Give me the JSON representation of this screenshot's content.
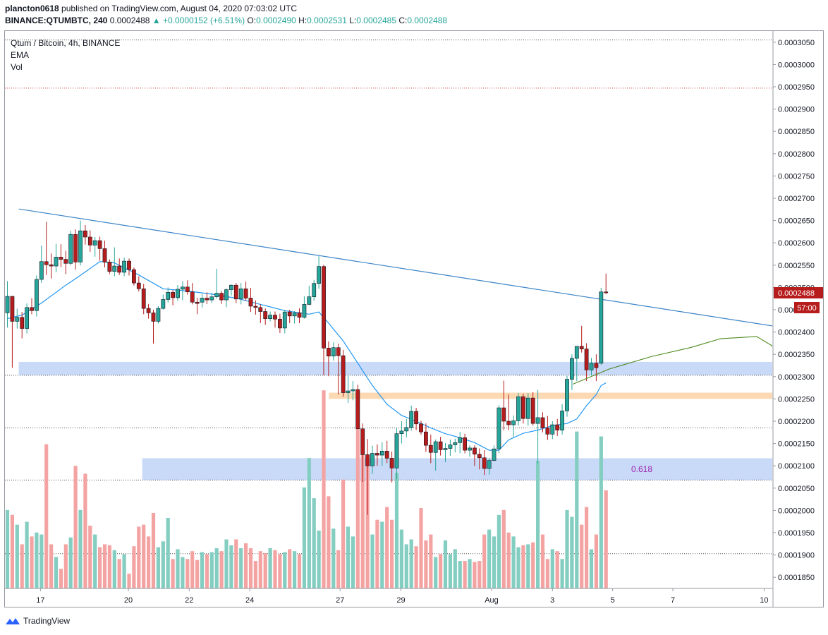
{
  "header": {
    "user": "plancton0618",
    "published_text": "published on TradingView.com, August 04, 2020 07:03:02 UTC",
    "symbol": "BINANCE:QTUMBTC, 240",
    "last": "0.0002488",
    "change": "▲ +0.0000152 (+6.51%)",
    "o_label": "O:",
    "o_value": "0.0002490",
    "h_label": "H:",
    "h_value": "0.0002531",
    "l_label": "L:",
    "l_value": "0.0002485",
    "c_label": "C:",
    "c_value": "0.0002488"
  },
  "legend": {
    "title": "Qtum / Bitcoin, 4h, BINANCE",
    "ema": "EMA",
    "vol": "Vol"
  },
  "brand": "TradingView",
  "colors": {
    "up": "#26a69a",
    "down": "#b71c1c",
    "candle_up_fill": "#26a69a",
    "vol_up": "#84cdc1",
    "vol_down": "#f4a3a3",
    "ema": "#2196f3",
    "trendline": "#3d85c6",
    "zone_blue": "#c9daf8",
    "zone_orange": "#fcd9b3",
    "projection": "#4f8a1f",
    "fib_text": "#9c27b0",
    "price_tag": "#b71c1c"
  },
  "chart_data": {
    "type": "candlestick",
    "y_range": [
      0.0001825,
      0.0003075
    ],
    "y_ticks": [
      "0.0003050",
      "0.0003000",
      "0.0002950",
      "0.0002900",
      "0.0002850",
      "0.0002800",
      "0.0002750",
      "0.0002700",
      "0.0002650",
      "0.0002600",
      "0.0002550",
      "0.0002500",
      "0.0002450",
      "0.0002400",
      "0.0002350",
      "0.0002300",
      "0.0002250",
      "0.0002200",
      "0.0002150",
      "0.0002100",
      "0.0002050",
      "0.0002000",
      "0.0001950",
      "0.0001900",
      "0.0001850"
    ],
    "x_labels": [
      "17",
      "20",
      "22",
      "24",
      "27",
      "29",
      "Aug",
      "3",
      "5",
      "7",
      "10"
    ],
    "last_price_label": "0.0002488",
    "countdown_label": "57:00",
    "fib_label": "0.618",
    "dotted_levels": [
      0.0003055,
      0.0002947,
      0.0002303,
      0.0002185,
      0.0002068,
      0.0001903
    ],
    "dotted_colors": [
      "#555555",
      "#d04040",
      "#555555",
      "#555555",
      "#555555",
      "#555555"
    ],
    "zones": [
      {
        "kind": "blue",
        "from_day": 0.0,
        "to_day": 25.2,
        "y_top": 0.0002333,
        "y_bottom": 0.0002303
      },
      {
        "kind": "orange",
        "from_day": 10.3,
        "to_day": 25.2,
        "y_top": 0.0002264,
        "y_bottom": 0.000225
      },
      {
        "kind": "blue",
        "from_day": 4.1,
        "to_day": 25.2,
        "y_top": 0.0002117,
        "y_bottom": 0.0002068
      }
    ],
    "trendline": {
      "x1_day": 0.0,
      "y1": 0.0002676,
      "x2_day": 25.2,
      "y2": 0.0002412
    },
    "projection": [
      [
        18.4,
        0.0002283
      ],
      [
        19.6,
        0.0002317
      ],
      [
        21.0,
        0.0002345
      ],
      [
        22.3,
        0.0002365
      ],
      [
        23.3,
        0.0002385
      ],
      [
        24.5,
        0.000239
      ],
      [
        25.0,
        0.000237
      ],
      [
        25.2,
        0.000235
      ]
    ],
    "candles": [
      [
        0.0002443,
        0.0002514,
        0.000241,
        0.000248,
        1905
      ],
      [
        0.000248,
        0.0002481,
        0.000232,
        0.0002424,
        1900
      ],
      [
        0.0002424,
        0.0002452,
        0.0002408,
        0.0002433,
        1890
      ],
      [
        0.0002433,
        0.0002445,
        0.0002386,
        0.0002408,
        1870
      ],
      [
        0.0002408,
        0.0002464,
        0.0002397,
        0.0002455,
        1893
      ],
      [
        0.0002455,
        0.0002476,
        0.000244,
        0.0002448,
        1878
      ],
      [
        0.0002448,
        0.0002527,
        0.0002435,
        0.0002518,
        1882
      ],
      [
        0.0002518,
        0.0002594,
        0.000251,
        0.0002558,
        1880
      ],
      [
        0.0002558,
        0.0002647,
        0.0002528,
        0.0002551,
        1972
      ],
      [
        0.0002551,
        0.0002576,
        0.000252,
        0.0002548,
        1870
      ],
      [
        0.0002548,
        0.0002598,
        0.0002534,
        0.0002568,
        1857
      ],
      [
        0.0002568,
        0.0002597,
        0.0002546,
        0.0002563,
        1845
      ],
      [
        0.0002563,
        0.0002582,
        0.000253,
        0.0002554,
        1870
      ],
      [
        0.0002554,
        0.0002627,
        0.000255,
        0.0002619,
        1877
      ],
      [
        0.0002619,
        0.000263,
        0.000254,
        0.0002557,
        1950
      ],
      [
        0.0002557,
        0.000265,
        0.0002549,
        0.0002627,
        1905
      ],
      [
        0.0002627,
        0.000264,
        0.0002596,
        0.0002613,
        1942
      ],
      [
        0.0002613,
        0.0002628,
        0.000258,
        0.0002595,
        1889
      ],
      [
        0.0002595,
        0.0002613,
        0.0002569,
        0.0002605,
        1880
      ],
      [
        0.0002605,
        0.0002614,
        0.000256,
        0.0002587,
        1867
      ],
      [
        0.0002587,
        0.0002605,
        0.0002545,
        0.0002557,
        1870
      ],
      [
        0.0002557,
        0.0002563,
        0.000253,
        0.0002536,
        1869
      ],
      [
        0.0002536,
        0.000259,
        0.0002525,
        0.0002548,
        1864
      ],
      [
        0.0002548,
        0.0002565,
        0.0002528,
        0.0002534,
        1855
      ],
      [
        0.0002534,
        0.0002567,
        0.0002525,
        0.0002559,
        1860
      ],
      [
        0.0002559,
        0.0002565,
        0.0002527,
        0.000254,
        1840
      ],
      [
        0.000254,
        0.0002545,
        0.0002504,
        0.000251,
        1868
      ],
      [
        0.000251,
        0.0002525,
        0.0002491,
        0.0002497,
        1888
      ],
      [
        0.0002497,
        0.0002508,
        0.000244,
        0.0002453,
        1890
      ],
      [
        0.0002453,
        0.0002463,
        0.000243,
        0.0002443,
        1878
      ],
      [
        0.0002443,
        0.000245,
        0.0002374,
        0.0002424,
        1902
      ],
      [
        0.0002424,
        0.0002458,
        0.0002419,
        0.0002453,
        1867
      ],
      [
        0.0002453,
        0.0002484,
        0.000245,
        0.0002473,
        1873
      ],
      [
        0.0002473,
        0.00025,
        0.0002466,
        0.0002489,
        1897
      ],
      [
        0.0002489,
        0.0002494,
        0.000246,
        0.0002477,
        1855
      ],
      [
        0.0002477,
        0.0002505,
        0.000247,
        0.0002496,
        1865
      ],
      [
        0.0002496,
        0.0002514,
        0.0002471,
        0.0002501,
        1857
      ],
      [
        0.0002501,
        0.0002516,
        0.0002484,
        0.000249,
        1855
      ],
      [
        0.000249,
        0.000251,
        0.0002462,
        0.0002467,
        1863
      ],
      [
        0.0002467,
        0.0002477,
        0.000244,
        0.0002464,
        1854
      ],
      [
        0.0002467,
        0.0002485,
        0.0002455,
        0.0002476,
        1862
      ],
      [
        0.0002476,
        0.0002489,
        0.0002463,
        0.0002472,
        1860
      ],
      [
        0.0002472,
        0.0002488,
        0.0002465,
        0.0002479,
        1862
      ],
      [
        0.0002479,
        0.0002542,
        0.0002475,
        0.0002487,
        1866
      ],
      [
        0.0002487,
        0.0002492,
        0.0002463,
        0.0002472,
        1863
      ],
      [
        0.0002472,
        0.0002498,
        0.0002456,
        0.0002495,
        1875
      ],
      [
        0.0002495,
        0.0002507,
        0.0002482,
        0.0002505,
        1869
      ],
      [
        0.0002505,
        0.000251,
        0.0002465,
        0.0002474,
        1875
      ],
      [
        0.0002474,
        0.000251,
        0.0002462,
        0.0002497,
        1866
      ],
      [
        0.0002497,
        0.0002513,
        0.000247,
        0.0002476,
        1871
      ],
      [
        0.0002476,
        0.0002499,
        0.0002445,
        0.0002458,
        1866
      ],
      [
        0.0002458,
        0.0002471,
        0.0002439,
        0.0002455,
        1853
      ],
      [
        0.0002455,
        0.0002462,
        0.000242,
        0.0002446,
        1863
      ],
      [
        0.0002446,
        0.0002453,
        0.0002416,
        0.000243,
        1861
      ],
      [
        0.000243,
        0.0002446,
        0.0002424,
        0.0002438,
        1866
      ],
      [
        0.0002438,
        0.0002446,
        0.000241,
        0.0002429,
        1864
      ],
      [
        0.0002429,
        0.0002441,
        0.0002398,
        0.0002409,
        1860
      ],
      [
        0.0002409,
        0.000245,
        0.0002397,
        0.0002445,
        1862
      ],
      [
        0.0002445,
        0.000245,
        0.000242,
        0.0002436,
        1865
      ],
      [
        0.0002436,
        0.0002447,
        0.0002419,
        0.0002443,
        1863
      ],
      [
        0.0002443,
        0.0002453,
        0.000242,
        0.0002433,
        1860
      ],
      [
        0.0002433,
        0.000248,
        0.000243,
        0.0002462,
        1928
      ],
      [
        0.0002462,
        0.0002504,
        0.000246,
        0.0002479,
        1958
      ],
      [
        0.0002479,
        0.0002517,
        0.000247,
        0.0002509,
        1917
      ],
      [
        0.0002509,
        0.000257,
        0.0002497,
        0.0002547,
        1884
      ],
      [
        0.0002547,
        0.0002551,
        0.0002303,
        0.0002364,
        2027
      ],
      [
        0.0002364,
        0.0002379,
        0.0002301,
        0.0002346,
        1919
      ],
      [
        0.0002346,
        0.0002377,
        0.0002336,
        0.0002365,
        1886
      ],
      [
        0.0002365,
        0.0002374,
        0.000226,
        0.0002347,
        1864
      ],
      [
        0.0002347,
        0.000236,
        0.0002255,
        0.0002264,
        1936
      ],
      [
        0.0002264,
        0.0002302,
        0.0002241,
        0.0002268,
        1888
      ],
      [
        0.0002268,
        0.000229,
        0.0002247,
        0.0002271,
        1878
      ],
      [
        0.0002271,
        0.0002282,
        0.0002185,
        0.0002183,
        1990
      ],
      [
        0.0002183,
        0.0002195,
        0.0002064,
        0.0002125,
        1962
      ],
      [
        0.0002125,
        0.000216,
        0.000199,
        0.00021,
        1955
      ],
      [
        0.00021,
        0.0002145,
        0.0002082,
        0.0002128,
        1880
      ],
      [
        0.0002128,
        0.0002148,
        0.00021,
        0.0002124,
        1895
      ],
      [
        0.0002124,
        0.0002153,
        0.00021,
        0.0002133,
        1893
      ],
      [
        0.0002133,
        0.0002156,
        0.0002106,
        0.0002117,
        1908
      ],
      [
        0.0002117,
        0.0002132,
        0.0002063,
        0.0002095,
        1895
      ],
      [
        0.0002095,
        0.0002185,
        0.000207,
        0.0002172,
        1943
      ],
      [
        0.0002172,
        0.00022,
        0.000215,
        0.0002178,
        1885
      ],
      [
        0.0002178,
        0.0002205,
        0.0002164,
        0.0002186,
        1870
      ],
      [
        0.0002186,
        0.0002235,
        0.0002179,
        0.0002222,
        1875
      ],
      [
        0.0002222,
        0.000223,
        0.000218,
        0.0002194,
        1868
      ],
      [
        0.0002194,
        0.0002201,
        0.000217,
        0.0002176,
        1907
      ],
      [
        0.0002176,
        0.0002195,
        0.0002131,
        0.0002146,
        1874
      ],
      [
        0.0002146,
        0.000217,
        0.0002106,
        0.000213,
        1880
      ],
      [
        0.000213,
        0.0002159,
        0.0002089,
        0.0002154,
        1857
      ],
      [
        0.0002154,
        0.0002165,
        0.0002123,
        0.0002136,
        1860
      ],
      [
        0.0002136,
        0.0002151,
        0.0002108,
        0.0002139,
        1874
      ],
      [
        0.0002139,
        0.0002159,
        0.0002122,
        0.0002147,
        1860
      ],
      [
        0.0002147,
        0.0002161,
        0.000213,
        0.0002152,
        1865
      ],
      [
        0.0002152,
        0.0002176,
        0.0002128,
        0.0002163,
        1853
      ],
      [
        0.0002163,
        0.0002172,
        0.0002128,
        0.0002135,
        1853
      ],
      [
        0.0002135,
        0.0002146,
        0.000212,
        0.000214,
        1855
      ],
      [
        0.000214,
        0.0002146,
        0.00021,
        0.0002126,
        1852
      ],
      [
        0.0002126,
        0.0002139,
        0.0002092,
        0.0002118,
        1853
      ],
      [
        0.0002118,
        0.0002135,
        0.0002079,
        0.0002094,
        1880
      ],
      [
        0.0002094,
        0.0002118,
        0.000208,
        0.0002112,
        1885
      ],
      [
        0.0002112,
        0.0002146,
        0.000211,
        0.0002138,
        1878
      ],
      [
        0.0002138,
        0.0002236,
        0.0002128,
        0.000223,
        1900
      ],
      [
        0.000223,
        0.0002291,
        0.000218,
        0.00022,
        1905
      ],
      [
        0.00022,
        0.000226,
        0.000218,
        0.0002192,
        1882
      ],
      [
        0.0002192,
        0.0002213,
        0.0002165,
        0.0002201,
        1878
      ],
      [
        0.0002201,
        0.0002263,
        0.000219,
        0.0002255,
        1867
      ],
      [
        0.0002255,
        0.0002262,
        0.0002195,
        0.0002206,
        1869
      ],
      [
        0.0002206,
        0.0002263,
        0.000219,
        0.0002252,
        1870
      ],
      [
        0.0002252,
        0.0002265,
        0.000219,
        0.0002195,
        1872
      ],
      [
        0.0002195,
        0.000227,
        0.0002106,
        0.0002208,
        1955
      ],
      [
        0.0002208,
        0.000222,
        0.0002175,
        0.0002185,
        1880
      ],
      [
        0.0002185,
        0.0002212,
        0.0002158,
        0.0002171,
        1855
      ],
      [
        0.0002171,
        0.00022,
        0.000216,
        0.0002192,
        1865
      ],
      [
        0.0002192,
        0.0002205,
        0.0002167,
        0.000218,
        1863
      ],
      [
        0.000218,
        0.0002238,
        0.000217,
        0.0002223,
        1855
      ],
      [
        0.0002223,
        0.0002302,
        0.000221,
        0.0002294,
        1905
      ],
      [
        0.0002294,
        0.000235,
        0.000227,
        0.0002341,
        1898
      ],
      [
        0.0002341,
        0.0002367,
        0.000229,
        0.0002368,
        1985
      ],
      [
        0.0002368,
        0.0002414,
        0.0002354,
        0.0002362,
        1890
      ],
      [
        0.0002362,
        0.0002375,
        0.000229,
        0.0002315,
        1908
      ],
      [
        0.0002315,
        0.0002342,
        0.0002302,
        0.000233,
        1865
      ],
      [
        0.000233,
        0.000235,
        0.000229,
        0.000232,
        1880
      ],
      [
        0.000233,
        0.0002499,
        0.0002326,
        0.000249,
        1980
      ],
      [
        0.000249,
        0.0002531,
        0.0002485,
        0.0002488,
        1925
      ]
    ],
    "ema": [
      [
        0,
        0.000243
      ],
      [
        3,
        0.0002438
      ],
      [
        7,
        0.0002465
      ],
      [
        12,
        0.0002505
      ],
      [
        15,
        0.0002527
      ],
      [
        19,
        0.0002558
      ],
      [
        22,
        0.0002555
      ],
      [
        27,
        0.0002528
      ],
      [
        32,
        0.0002497
      ],
      [
        37,
        0.0002492
      ],
      [
        42,
        0.0002485
      ],
      [
        47,
        0.0002476
      ],
      [
        52,
        0.0002462
      ],
      [
        57,
        0.0002448
      ],
      [
        62,
        0.000244
      ],
      [
        64,
        0.0002445
      ],
      [
        66,
        0.000242
      ],
      [
        69,
        0.000238
      ],
      [
        72,
        0.000233
      ],
      [
        75,
        0.000228
      ],
      [
        78,
        0.0002238
      ],
      [
        81,
        0.0002213
      ],
      [
        84,
        0.00022
      ],
      [
        87,
        0.0002185
      ],
      [
        90,
        0.0002172
      ],
      [
        93,
        0.0002163
      ],
      [
        96,
        0.0002152
      ],
      [
        99,
        0.0002135
      ],
      [
        101,
        0.0002135
      ],
      [
        103,
        0.0002158
      ],
      [
        106,
        0.0002173
      ],
      [
        109,
        0.000218
      ],
      [
        112,
        0.000219
      ],
      [
        115,
        0.0002195
      ],
      [
        117,
        0.0002205
      ],
      [
        119,
        0.0002235
      ],
      [
        121,
        0.000226
      ],
      [
        122,
        0.000228
      ],
      [
        123,
        0.0002286
      ]
    ]
  }
}
